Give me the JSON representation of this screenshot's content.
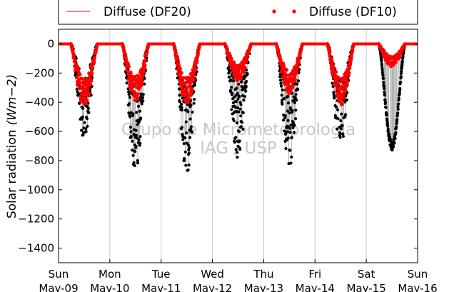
{
  "chart_data": {
    "type": "scatter",
    "ylabel": "Solar radiation",
    "ylabel_unit": "(Wm−2)",
    "ylim": [
      -1500,
      100
    ],
    "yticks": [
      0,
      -200,
      -400,
      -600,
      -800,
      -1000,
      -1200,
      -1400
    ],
    "ytick_labels": [
      "0",
      "−200",
      "−400",
      "−600",
      "−800",
      "−1000",
      "−1200",
      "−1400"
    ],
    "xlim": [
      0,
      7
    ],
    "xticks": [
      {
        "x": 0,
        "day": "Sun",
        "date": "May-09"
      },
      {
        "x": 1,
        "day": "Mon",
        "date": "May-10"
      },
      {
        "x": 2,
        "day": "Tue",
        "date": "May-11"
      },
      {
        "x": 3,
        "day": "Wed",
        "date": "May-12"
      },
      {
        "x": 4,
        "day": "Thu",
        "date": "May-13"
      },
      {
        "x": 5,
        "day": "Fri",
        "date": "May-14"
      },
      {
        "x": 6,
        "day": "Sat",
        "date": "May-15"
      },
      {
        "x": 7,
        "day": "Sun",
        "date": "May-16"
      }
    ],
    "grid": "vertical",
    "legend_position": "top",
    "watermark": [
      "Grupo de Micrometeorologia",
      "IAG / USP"
    ],
    "series": [
      {
        "name": "Diffuse (DF20)",
        "color": "#ff0000",
        "style": "line"
      },
      {
        "name": "Diffuse (DF10)",
        "color": "#ff0000",
        "style": "points"
      },
      {
        "name": "",
        "color": "#000000",
        "style": "points"
      }
    ],
    "daily_minima": [
      {
        "x": 0.5,
        "global": -650,
        "diffuse": -430
      },
      {
        "x": 1.5,
        "global": -880,
        "diffuse": -400
      },
      {
        "x": 2.5,
        "global": -890,
        "diffuse": -420
      },
      {
        "x": 3.5,
        "global": -790,
        "diffuse": -260
      },
      {
        "x": 4.5,
        "global": -840,
        "diffuse": -340
      },
      {
        "x": 5.5,
        "global": -700,
        "diffuse": -420
      },
      {
        "x": 6.5,
        "global": -730,
        "diffuse": -160
      }
    ]
  }
}
